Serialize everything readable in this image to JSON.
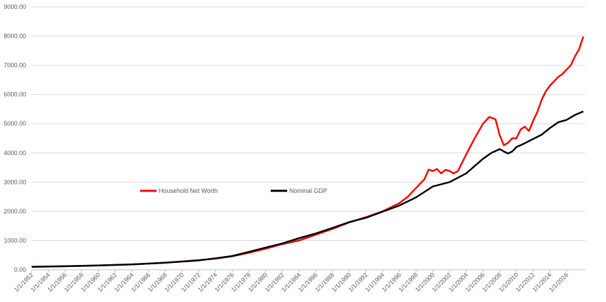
{
  "chart_data": {
    "type": "line",
    "title": "",
    "xlabel": "",
    "ylabel": "",
    "ylim": [
      0,
      9000
    ],
    "yticks": [
      "0.00",
      "1000.00",
      "2000.00",
      "3000.00",
      "4000.00",
      "5000.00",
      "6000.00",
      "7000.00",
      "8000.00",
      "9000.00"
    ],
    "xlim": [
      1952,
      2018.25
    ],
    "xticks": [
      "1/1/1952",
      "1/1/1954",
      "1/1/1956",
      "1/1/1958",
      "1/1/1960",
      "1/1/1962",
      "1/1/1964",
      "1/1/1966",
      "1/1/1968",
      "1/1/1970",
      "1/1/1972",
      "1/1/1974",
      "1/1/1976",
      "1/1/1978",
      "1/1/1980",
      "1/1/1982",
      "1/1/1984",
      "1/1/1986",
      "1/1/1988",
      "1/1/1990",
      "1/1/1992",
      "1/1/1994",
      "1/1/1996",
      "1/1/1998",
      "1/1/2000",
      "1/1/2002",
      "1/1/2004",
      "1/1/2006",
      "1/1/2008",
      "1/1/2010",
      "1/1/2012",
      "1/1/2014",
      "1/1/2016"
    ],
    "grid": "horizontal",
    "legend_position": "middle-left",
    "series": [
      {
        "name": "Household Net Worth",
        "color": "#ff0000",
        "x": [
          1952,
          1956,
          1960,
          1964,
          1968,
          1972,
          1974,
          1976,
          1978,
          1980,
          1982,
          1984,
          1986,
          1988,
          1990,
          1992,
          1994,
          1996,
          1997,
          1998,
          1999,
          1999.5,
          2000,
          2000.5,
          2001,
          2001.5,
          2002,
          2002.5,
          2003,
          2004,
          2005,
          2006,
          2006.75,
          2007.5,
          2008,
          2008.5,
          2009,
          2009.5,
          2010,
          2010.5,
          2011,
          2011.5,
          2012,
          2012.5,
          2013,
          2013.5,
          2014,
          2014.5,
          2015,
          2015.5,
          2016,
          2016.5,
          2017,
          2017.5,
          2018
        ],
        "y": [
          100,
          120,
          145,
          180,
          240,
          330,
          380,
          460,
          580,
          720,
          880,
          1000,
          1200,
          1400,
          1620,
          1800,
          2000,
          2280,
          2500,
          2800,
          3100,
          3430,
          3380,
          3450,
          3300,
          3420,
          3380,
          3300,
          3380,
          3950,
          4500,
          5000,
          5230,
          5150,
          4600,
          4260,
          4350,
          4500,
          4500,
          4800,
          4900,
          4750,
          5100,
          5400,
          5800,
          6100,
          6300,
          6450,
          6600,
          6700,
          6850,
          7000,
          7300,
          7550,
          7980
        ]
      },
      {
        "name": "Nominal GDP",
        "color": "#000000",
        "x": [
          1952,
          1956,
          1960,
          1964,
          1968,
          1972,
          1974,
          1976,
          1978,
          1980,
          1982,
          1984,
          1986,
          1988,
          1990,
          1992,
          1994,
          1996,
          1998,
          2000,
          2002,
          2004,
          2006,
          2007,
          2008,
          2008.5,
          2009,
          2009.5,
          2010,
          2011,
          2012,
          2013,
          2014,
          2015,
          2016,
          2017,
          2018
        ],
        "y": [
          100,
          120,
          145,
          180,
          240,
          320,
          390,
          470,
          610,
          760,
          900,
          1080,
          1240,
          1430,
          1630,
          1780,
          1990,
          2200,
          2480,
          2850,
          3000,
          3300,
          3800,
          4000,
          4130,
          4050,
          3980,
          4050,
          4200,
          4330,
          4480,
          4620,
          4850,
          5050,
          5130,
          5300,
          5420
        ]
      }
    ]
  }
}
